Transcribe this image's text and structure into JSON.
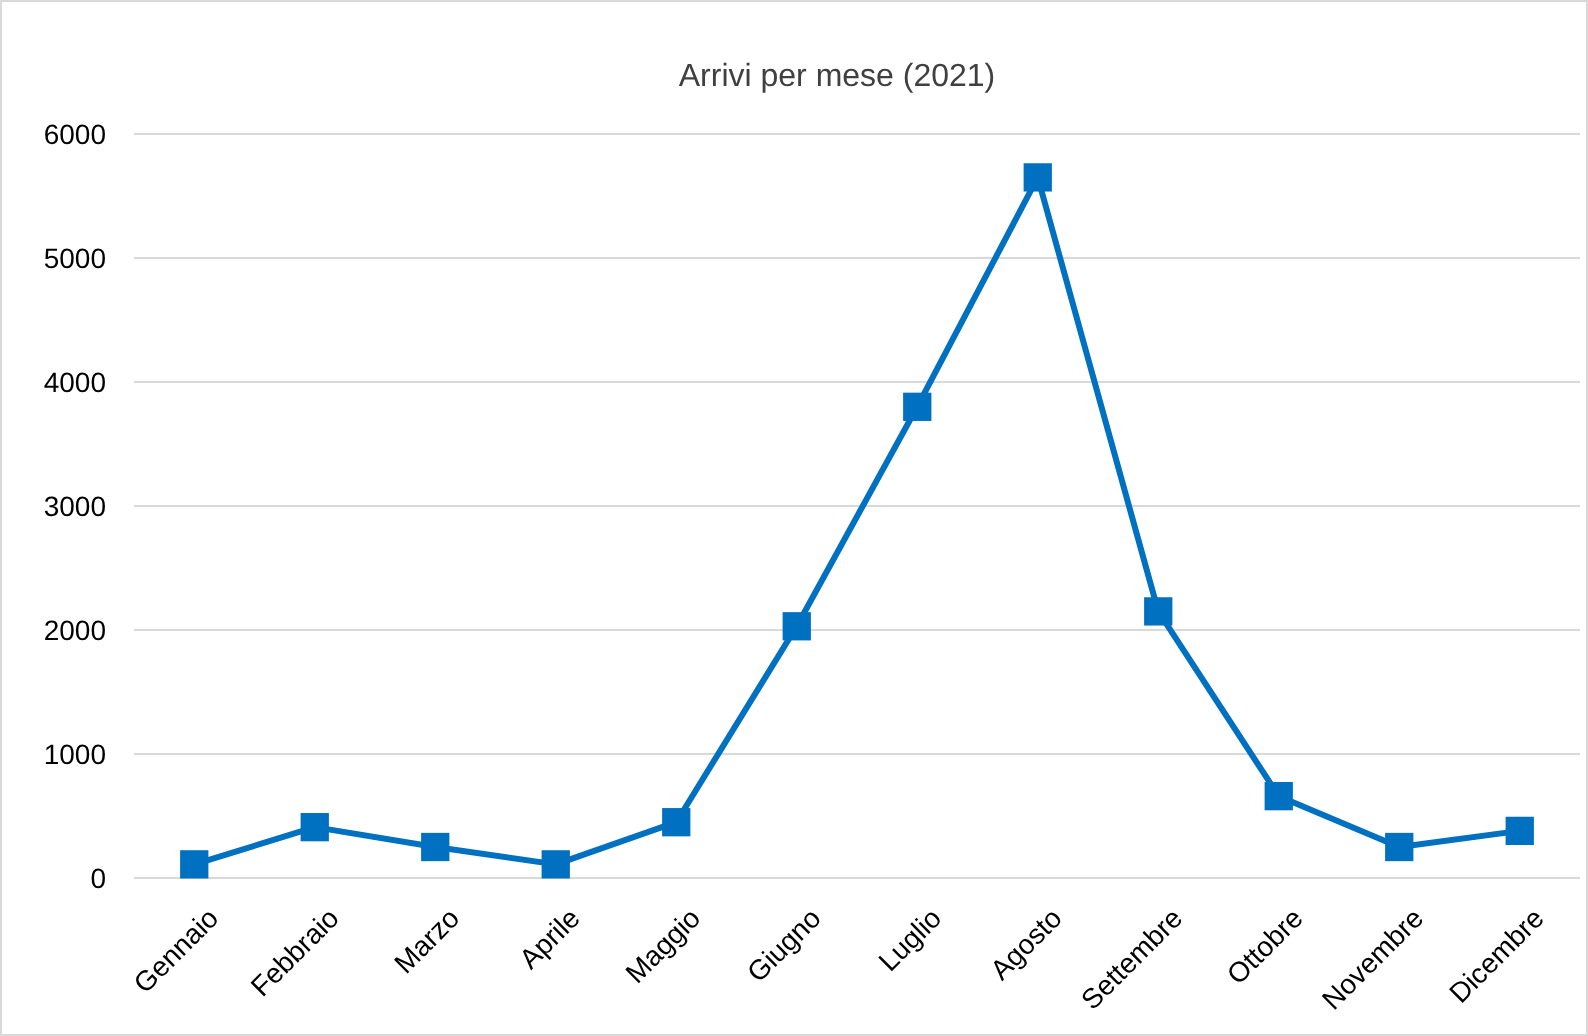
{
  "chart_data": {
    "type": "line",
    "title": "Arrivi per mese (2021)",
    "categories": [
      "Gennaio",
      "Febbraio",
      "Marzo",
      "Aprile",
      "Maggio",
      "Giugno",
      "Luglio",
      "Agosto",
      "Settembre",
      "Ottobre",
      "Novembre",
      "Dicembre"
    ],
    "series": [
      {
        "color": "#0070c0",
        "values": [
          110,
          410,
          250,
          110,
          450,
          2030,
          3800,
          5650,
          2150,
          660,
          250,
          380
        ]
      }
    ],
    "marker": "square",
    "ylim": [
      0,
      6000
    ],
    "yticks": [
      0,
      1000,
      2000,
      3000,
      4000,
      5000,
      6000
    ],
    "grid": "y"
  }
}
